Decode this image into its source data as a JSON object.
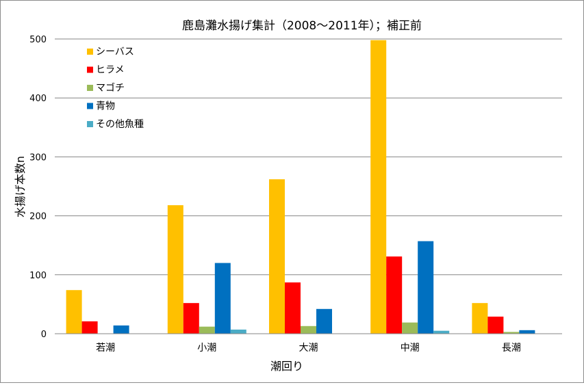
{
  "chart_data": {
    "type": "bar",
    "title": "鹿島灘水揚げ集計（2008～2011年）；補正前",
    "xlabel": "潮回り",
    "ylabel": "水揚げ本数n",
    "categories": [
      "若潮",
      "小潮",
      "大潮",
      "中潮",
      "長潮"
    ],
    "ylim": [
      0,
      500
    ],
    "yticks": [
      0,
      100,
      200,
      300,
      400,
      500
    ],
    "grid": true,
    "legend_position": "top-left",
    "series": [
      {
        "name": "シーバス",
        "color": "#FFC000",
        "values": [
          74,
          218,
          262,
          498,
          52
        ]
      },
      {
        "name": "ヒラメ",
        "color": "#FF0000",
        "values": [
          21,
          52,
          87,
          131,
          29
        ]
      },
      {
        "name": "マゴチ",
        "color": "#9BBB59",
        "values": [
          0,
          12,
          13,
          19,
          3
        ]
      },
      {
        "name": "青物",
        "color": "#0070C0",
        "values": [
          14,
          120,
          42,
          157,
          6
        ]
      },
      {
        "name": "その他魚種",
        "color": "#4BACC6",
        "values": [
          0,
          7,
          0,
          5,
          0
        ]
      }
    ]
  }
}
